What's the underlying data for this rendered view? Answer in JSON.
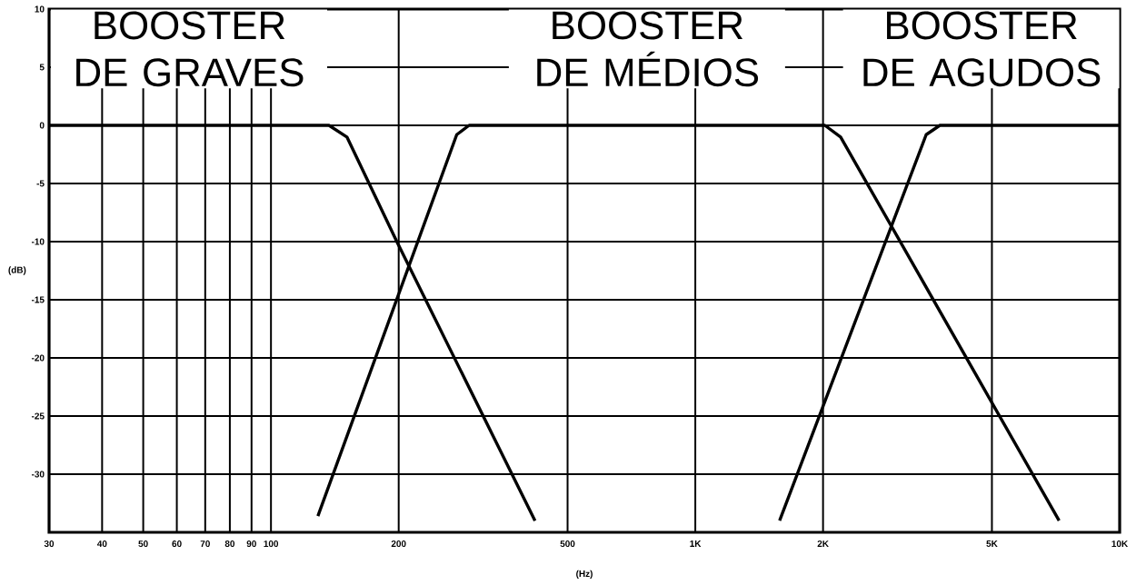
{
  "chart_data": {
    "type": "line",
    "xlabel": "(Hz)",
    "ylabel": "(dB)",
    "log": "x",
    "grid": true,
    "marker": "none",
    "line_style": "solid",
    "xlim": [
      30,
      10000
    ],
    "ylim": [
      -35,
      10
    ],
    "xticks": [
      30,
      40,
      50,
      60,
      70,
      80,
      90,
      100,
      200,
      500,
      {
        "value": 1000,
        "label": "1K"
      },
      {
        "value": 2000,
        "label": "2K"
      },
      {
        "value": 5000,
        "label": "5K"
      },
      {
        "value": 10000,
        "label": "10K"
      }
    ],
    "yticks": [
      {
        "value": -35,
        "label": null
      },
      -30,
      -25,
      -20,
      -15,
      -10,
      -5,
      0,
      5,
      10
    ],
    "series": [
      {
        "name": "BOOSTER DE GRAVES",
        "color": "#000000",
        "x": [
          30,
          137,
          151,
          198,
          419
        ],
        "values": [
          0,
          0,
          -1,
          -10,
          -34
        ]
      },
      {
        "name": "BOOSTER DE MÉDIOS",
        "color": "#000000",
        "x": [
          129,
          274,
          293,
          2020,
          2200,
          7200
        ],
        "values": [
          -33.6,
          -0.8,
          0,
          0,
          -1,
          -34
        ]
      },
      {
        "name": "BOOSTER DE AGUDOS",
        "color": "#000000",
        "x": [
          1580,
          3500,
          3770,
          10000
        ],
        "values": [
          -34,
          -0.8,
          0,
          0
        ]
      }
    ]
  }
}
